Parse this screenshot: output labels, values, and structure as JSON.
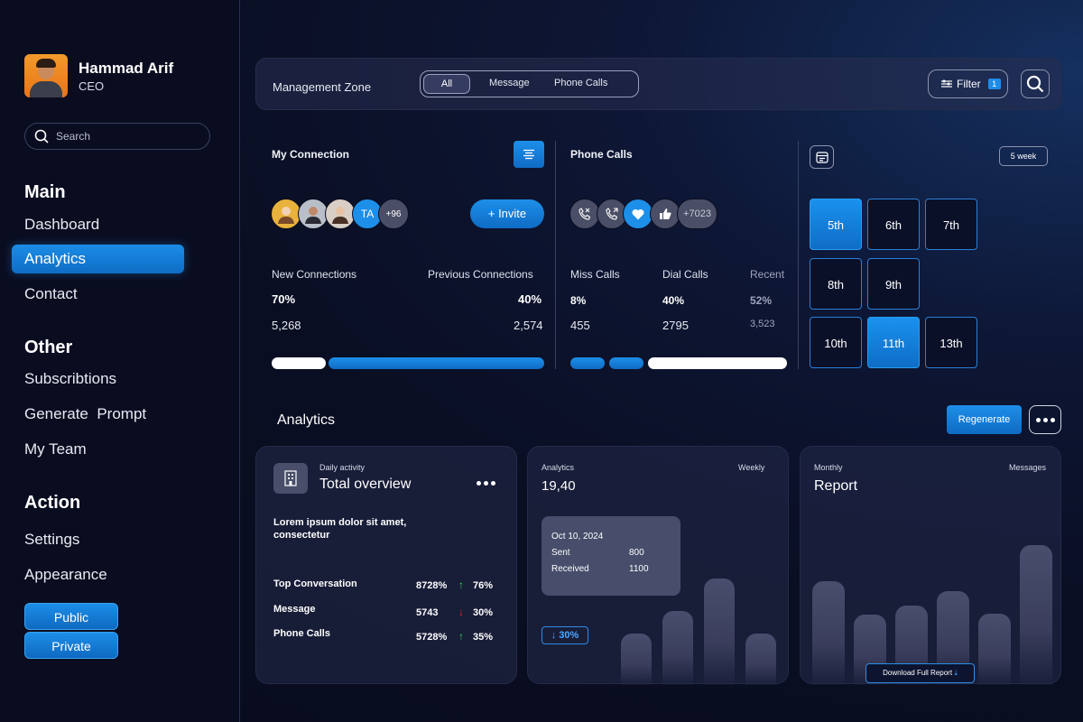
{
  "profile": {
    "name": "Hammad Arif",
    "role": "CEO"
  },
  "search": {
    "placeholder": "Search"
  },
  "nav": {
    "main_title": "Main",
    "main_items": [
      "Dashboard",
      "Analytics",
      "Contact"
    ],
    "other_title": "Other",
    "other_items": [
      "Subscribtions",
      "Generate  Prompt",
      "My Team"
    ],
    "action_title": "Action",
    "action_items": [
      "Settings",
      "Appearance"
    ],
    "buttons": [
      "Public",
      "Private"
    ]
  },
  "topbar": {
    "title": "Management Zone",
    "segments": [
      "All",
      "Message",
      "Phone Calls"
    ],
    "filter_label": "Filter",
    "filter_count": "1"
  },
  "connection": {
    "title": "My Connection",
    "initials": "TA",
    "extra_count": "+96",
    "invite_label": "+ Invite",
    "new_label": "New Connections",
    "new_pct": "70%",
    "new_count": "5,268",
    "prev_label": "Previous Connections",
    "prev_pct": "40%",
    "prev_count": "2,574",
    "new_fraction": 0.2,
    "prev_fraction": 0.8
  },
  "phone": {
    "title": "Phone Calls",
    "extra_count": "+7023",
    "miss_label": "Miss Calls",
    "miss_pct": "8%",
    "miss_count": "455",
    "dial_label": "Dial Calls",
    "dial_pct": "40%",
    "dial_count": "2795",
    "recent_label": "Recent",
    "recent_pct": "52%",
    "recent_count": "3,523"
  },
  "calendar": {
    "range_label": "5 week",
    "days": [
      "5th",
      "6th",
      "7th",
      "8th",
      "9th",
      "10th",
      "11th",
      "13th"
    ],
    "active_days": [
      "5th",
      "11th"
    ]
  },
  "analytics": {
    "title": "Analytics",
    "regenerate_label": "Regenerate",
    "overview": {
      "small_title": "Daily activity",
      "title": "Total overview",
      "description": "Lorem ipsum dolor sit amet, consectetur",
      "rows": [
        {
          "label": "Top Conversation",
          "value": "8728%",
          "trend": "up",
          "pct": "76%"
        },
        {
          "label": "Message",
          "value": "5743",
          "trend": "down",
          "pct": "30%"
        },
        {
          "label": "Phone Calls",
          "value": "5728%",
          "trend": "up",
          "pct": "35%"
        }
      ]
    },
    "weekly": {
      "small_title": "Analytics",
      "period": "Weekly",
      "value": "19,40",
      "tooltip_date": "Oct 10, 2024",
      "sent_label": "Sent",
      "sent_value": "800",
      "received_label": "Received",
      "received_value": "1100",
      "change": "30%",
      "bars": [
        0.34,
        0.49,
        0.7,
        0.34
      ]
    },
    "monthly": {
      "small_title": "Monthly",
      "category": "Messages",
      "title": "Report",
      "download_label": "Download Full Report",
      "bars": [
        0.74,
        0.5,
        0.57,
        0.67,
        0.51,
        1.0
      ]
    }
  },
  "colors": {
    "accent": "#1d8fe9",
    "up": "#2fd14a",
    "down": "#e8232a",
    "background": "#0a0e22"
  }
}
